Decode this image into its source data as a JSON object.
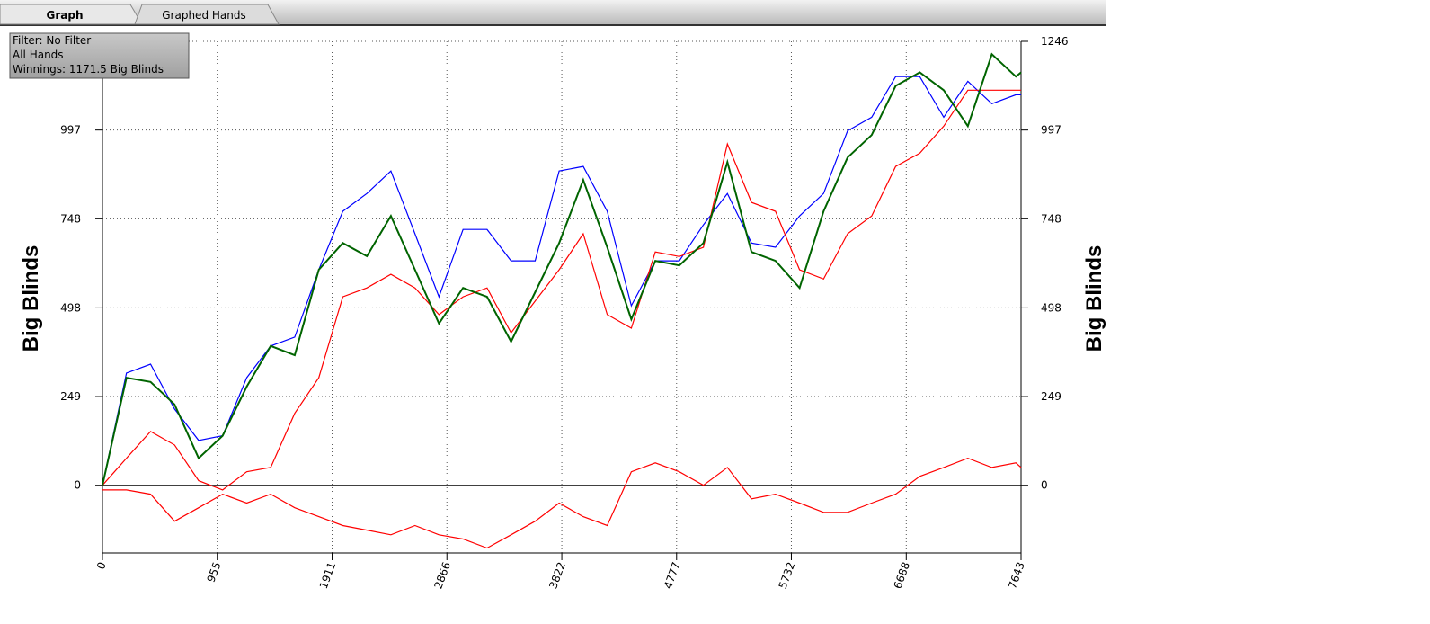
{
  "tabs": [
    "Graph",
    "Graphed Hands"
  ],
  "info": [
    "Filter: No Filter",
    "All Hands",
    "Winnings: 1171.5 Big Blinds"
  ],
  "chart_data": {
    "type": "line",
    "ylabel": "Big Blinds",
    "x": [
      0,
      200,
      400,
      600,
      800,
      1000,
      1200,
      1400,
      1600,
      1800,
      2000,
      2200,
      2400,
      2600,
      2800,
      3000,
      3200,
      3400,
      3600,
      3800,
      4000,
      4200,
      4400,
      4600,
      4800,
      5000,
      5200,
      5400,
      5600,
      5800,
      6000,
      6200,
      6400,
      6600,
      6800,
      7000,
      7200,
      7400,
      7600,
      7643
    ],
    "series": [
      {
        "color": "#0000ff",
        "values": [
          0,
          315,
          340,
          214,
          126,
          139,
          302,
          391,
          416,
          605,
          769,
          819,
          882,
          706,
          529,
          718,
          718,
          630,
          630,
          882,
          895,
          769,
          504,
          630,
          630,
          731,
          819,
          680,
          668,
          756,
          819,
          995,
          1033,
          1147,
          1147,
          1033,
          1134,
          1071,
          1096,
          1096
        ]
      },
      {
        "color": "#ff0000",
        "values": [
          0,
          76,
          151,
          113,
          13,
          -13,
          38,
          50,
          202,
          302,
          529,
          554,
          592,
          554,
          479,
          529,
          554,
          428,
          517,
          605,
          706,
          479,
          441,
          655,
          642,
          668,
          958,
          794,
          769,
          605,
          579,
          706,
          756,
          895,
          932,
          1008,
          1109,
          1109,
          1109,
          1109
        ]
      },
      {
        "color": "#ff0000",
        "values": [
          -13,
          -13,
          -25,
          -101,
          -63,
          -25,
          -50,
          -25,
          -63,
          -88,
          -113,
          -126,
          -139,
          -113,
          -139,
          -151,
          -176,
          -139,
          -101,
          -50,
          -88,
          -113,
          38,
          63,
          38,
          0,
          50,
          -38,
          -25,
          -50,
          -76,
          -76,
          -50,
          -25,
          25,
          50,
          76,
          50,
          63,
          50
        ]
      },
      {
        "color": "#006400",
        "values": [
          0,
          302,
          290,
          227,
          76,
          139,
          277,
          391,
          365,
          605,
          680,
          643,
          756,
          605,
          454,
          554,
          529,
          403,
          542,
          680,
          857,
          668,
          466,
          630,
          617,
          680,
          907,
          655,
          630,
          554,
          769,
          920,
          983,
          1121,
          1159,
          1109,
          1008,
          1210,
          1147,
          1159
        ]
      }
    ],
    "xlim": [
      0,
      7643
    ],
    "xticks": [
      0,
      955,
      1911,
      2866,
      3822,
      4777,
      5732,
      6688,
      7643
    ],
    "ylim": [
      -190,
      1246
    ],
    "yticks": [
      0,
      249,
      498,
      748,
      997,
      1246
    ],
    "grid": true
  }
}
